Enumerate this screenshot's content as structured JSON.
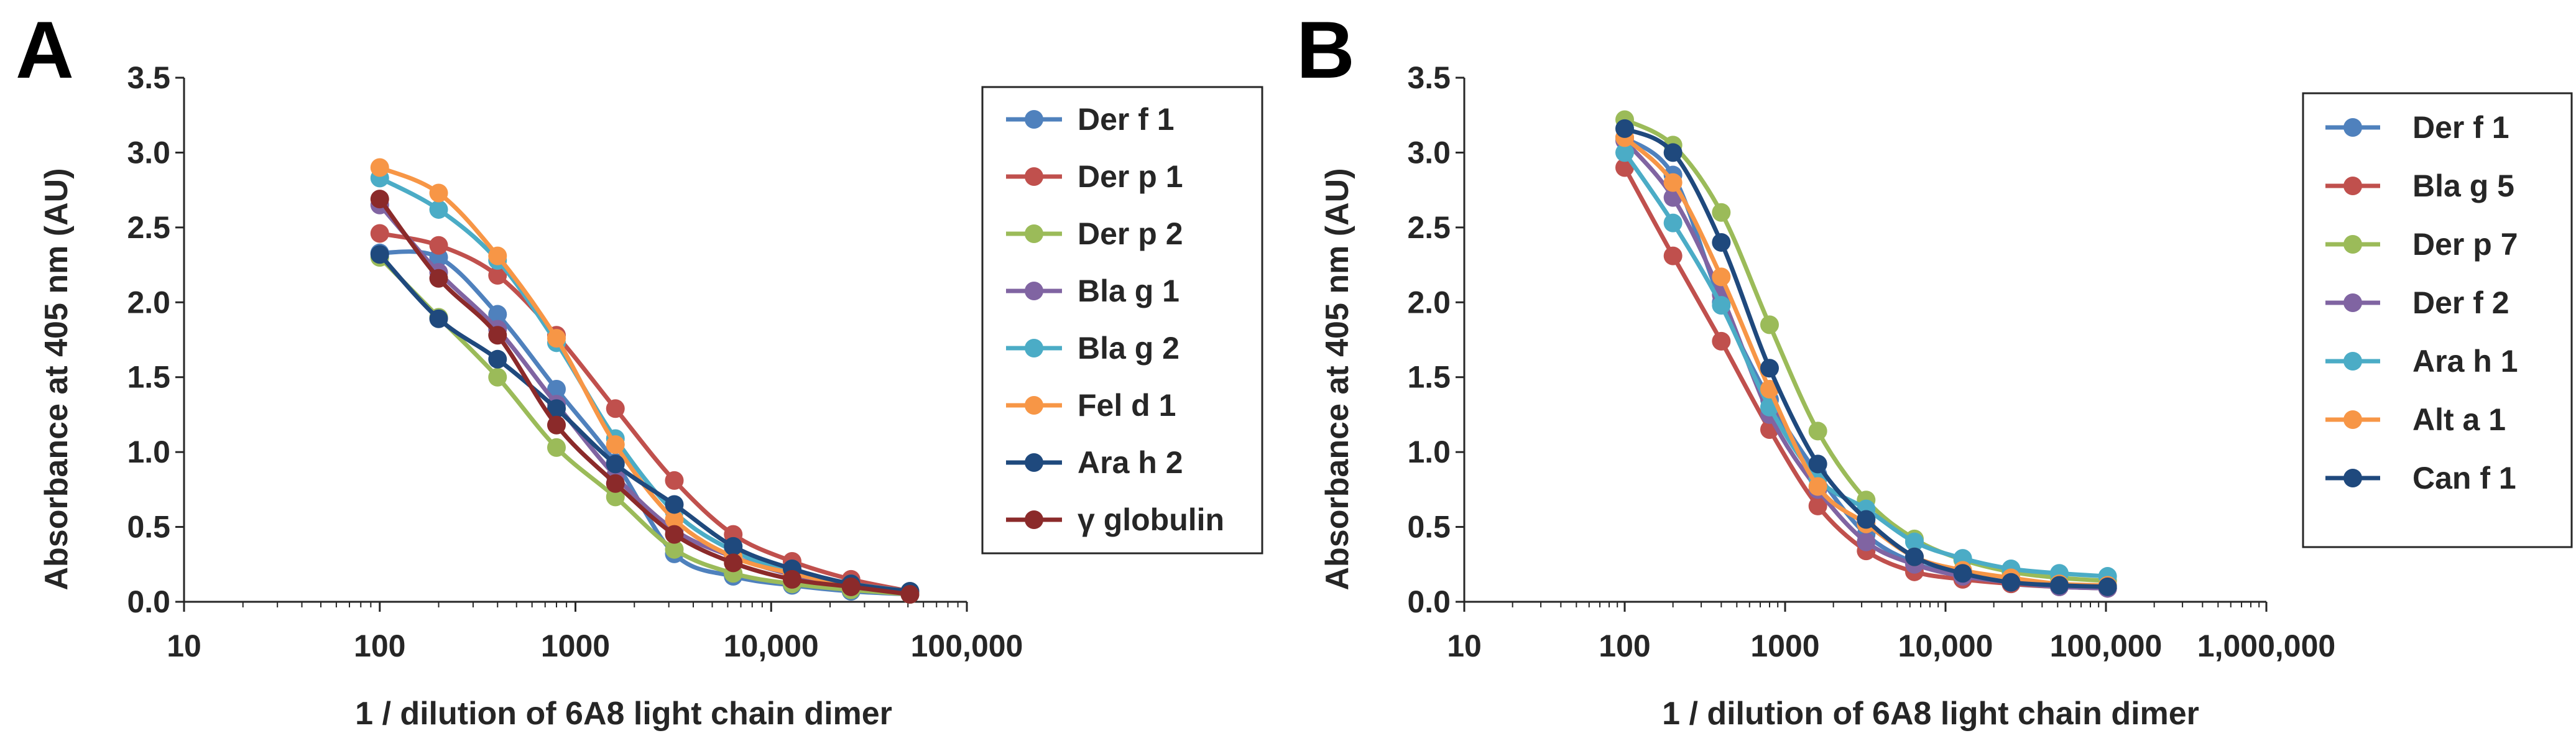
{
  "chart_data": [
    {
      "type": "line",
      "panel_label": "A",
      "xlabel": "1 / dilution of 6A8 light chain dimer",
      "ylabel": "Absorbance at 405 nm (AU)",
      "x_scale": "log",
      "xlim": [
        10,
        100000
      ],
      "ylim": [
        0,
        3.5
      ],
      "x_tick_labels": [
        "10",
        "100",
        "1000",
        "10,000",
        "100,000"
      ],
      "y_tick_labels": [
        "0.0",
        "0.5",
        "1.0",
        "1.5",
        "2.0",
        "2.5",
        "3.0",
        "3.5"
      ],
      "grid": false,
      "legend_position": "right",
      "x": [
        100,
        200,
        400,
        800,
        1600,
        3200,
        6400,
        12800,
        25600,
        51200
      ],
      "series": [
        {
          "name": "Der f 1",
          "color": "#4F81BD",
          "values": [
            2.33,
            2.3,
            1.92,
            1.42,
            0.93,
            0.32,
            0.17,
            0.11,
            0.07,
            0.05
          ]
        },
        {
          "name": "Der p 1",
          "color": "#C0504D",
          "values": [
            2.46,
            2.38,
            2.18,
            1.78,
            1.29,
            0.81,
            0.45,
            0.27,
            0.15,
            0.07
          ]
        },
        {
          "name": "Der p 2",
          "color": "#9BBB59",
          "values": [
            2.3,
            1.9,
            1.5,
            1.03,
            0.7,
            0.35,
            0.19,
            0.12,
            0.08,
            0.05
          ]
        },
        {
          "name": "Bla g 1",
          "color": "#8064A2",
          "values": [
            2.65,
            2.2,
            1.82,
            1.32,
            0.84,
            0.48,
            0.3,
            0.18,
            0.1,
            0.06
          ]
        },
        {
          "name": "Bla g 2",
          "color": "#4BACC6",
          "values": [
            2.83,
            2.62,
            2.28,
            1.73,
            1.09,
            0.6,
            0.34,
            0.2,
            0.12,
            0.07
          ]
        },
        {
          "name": "Fel d 1",
          "color": "#F79646",
          "values": [
            2.9,
            2.73,
            2.31,
            1.76,
            1.05,
            0.55,
            0.3,
            0.19,
            0.11,
            0.06
          ]
        },
        {
          "name": "Ara h 2",
          "color": "#1F497D",
          "values": [
            2.32,
            1.89,
            1.62,
            1.29,
            0.92,
            0.65,
            0.37,
            0.22,
            0.12,
            0.07
          ]
        },
        {
          "name": "γ globulin",
          "color": "#8B2A2A",
          "values": [
            2.69,
            2.16,
            1.78,
            1.18,
            0.79,
            0.45,
            0.26,
            0.15,
            0.1,
            0.05
          ]
        }
      ]
    },
    {
      "type": "line",
      "panel_label": "B",
      "xlabel": "1 / dilution of 6A8 light chain dimer",
      "ylabel": "Absorbance at 405 nm (AU)",
      "x_scale": "log",
      "xlim": [
        10,
        1000000
      ],
      "ylim": [
        0,
        3.5
      ],
      "x_tick_labels": [
        "10",
        "100",
        "1000",
        "10,000",
        "100,000",
        "1,000,000"
      ],
      "y_tick_labels": [
        "0.0",
        "0.5",
        "1.0",
        "1.5",
        "2.0",
        "2.5",
        "3.0",
        "3.5"
      ],
      "grid": false,
      "legend_position": "right",
      "x": [
        100,
        200,
        400,
        800,
        1600,
        3200,
        6400,
        12800,
        25600,
        51200,
        102400
      ],
      "series": [
        {
          "name": "Der f 1",
          "color": "#4F81BD",
          "values": [
            3.1,
            2.85,
            2.0,
            1.35,
            0.85,
            0.45,
            0.26,
            0.17,
            0.12,
            0.1,
            0.09
          ]
        },
        {
          "name": "Bla g 5",
          "color": "#C0504D",
          "values": [
            2.9,
            2.31,
            1.74,
            1.15,
            0.64,
            0.34,
            0.2,
            0.15,
            0.12,
            0.1,
            0.09
          ]
        },
        {
          "name": "Der p 7",
          "color": "#9BBB59",
          "values": [
            3.22,
            3.05,
            2.6,
            1.85,
            1.14,
            0.68,
            0.42,
            0.28,
            0.2,
            0.16,
            0.14
          ]
        },
        {
          "name": "Der f 2",
          "color": "#8064A2",
          "values": [
            3.08,
            2.7,
            2.05,
            1.25,
            0.75,
            0.4,
            0.25,
            0.17,
            0.13,
            0.1,
            0.09
          ]
        },
        {
          "name": "Ara h 1",
          "color": "#4BACC6",
          "values": [
            3.0,
            2.53,
            1.98,
            1.3,
            0.82,
            0.62,
            0.4,
            0.29,
            0.22,
            0.19,
            0.17
          ]
        },
        {
          "name": "Alt a 1",
          "color": "#F79646",
          "values": [
            3.1,
            2.8,
            2.17,
            1.42,
            0.77,
            0.52,
            0.3,
            0.21,
            0.16,
            0.12,
            0.11
          ]
        },
        {
          "name": "Can f 1",
          "color": "#1F497D",
          "values": [
            3.16,
            3.0,
            2.4,
            1.56,
            0.92,
            0.55,
            0.3,
            0.19,
            0.13,
            0.11,
            0.1
          ]
        }
      ]
    }
  ]
}
